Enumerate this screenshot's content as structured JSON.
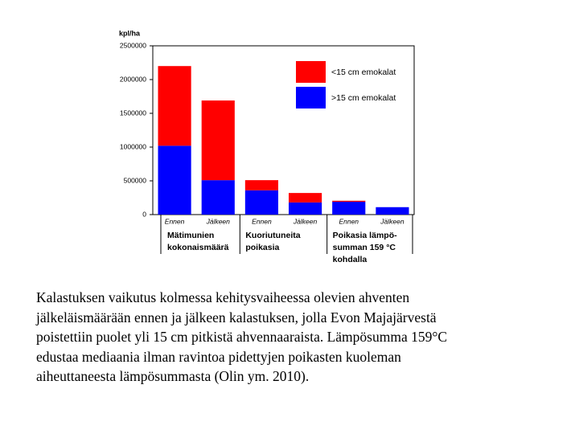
{
  "chart_data": {
    "type": "stacked-bar",
    "y_label": "kpl/ha",
    "categories": [
      "Ennen",
      "Jälkeen",
      "Ennen",
      "Jälkeen",
      "Ennen",
      "Jälkeen"
    ],
    "groups": [
      {
        "lines": [
          "Mätimunien",
          "kokonaismäärä"
        ]
      },
      {
        "lines": [
          "Kuoriutuneita",
          "poikasia"
        ]
      },
      {
        "lines": [
          "Poikasia lämpö-",
          "summan 159 °C",
          "kohdalla"
        ]
      }
    ],
    "series": [
      {
        "name": "<15 cm emokalat",
        "color": "#ff0000",
        "values": [
          1180000,
          1180000,
          150000,
          140000,
          15000,
          0
        ]
      },
      {
        "name": ">15 cm emokalat",
        "color": "#0000ff",
        "values": [
          1020000,
          510000,
          360000,
          180000,
          190000,
          110000
        ]
      }
    ],
    "ylim": [
      0,
      2500000
    ],
    "yticks": [
      0,
      500000,
      1000000,
      1500000,
      2000000,
      2500000
    ],
    "legend": "top-right"
  },
  "caption": {
    "lines": [
      "Kalastuksen vaikutus kolmessa kehitysvaiheessa olevien  ahventen",
      "jälkeläismäärään ennen ja jälkeen kalastuksen, jolla Evon Majajärvestä",
      "poistettiin puolet yli 15 cm pitkistä ahvennaaraista. Lämpösumma 159°C",
      "edustaa mediaania ilman ravintoa pidettyjen poikasten kuoleman",
      "aiheuttaneesta lämpösummasta (Olin ym. 2010)."
    ]
  }
}
